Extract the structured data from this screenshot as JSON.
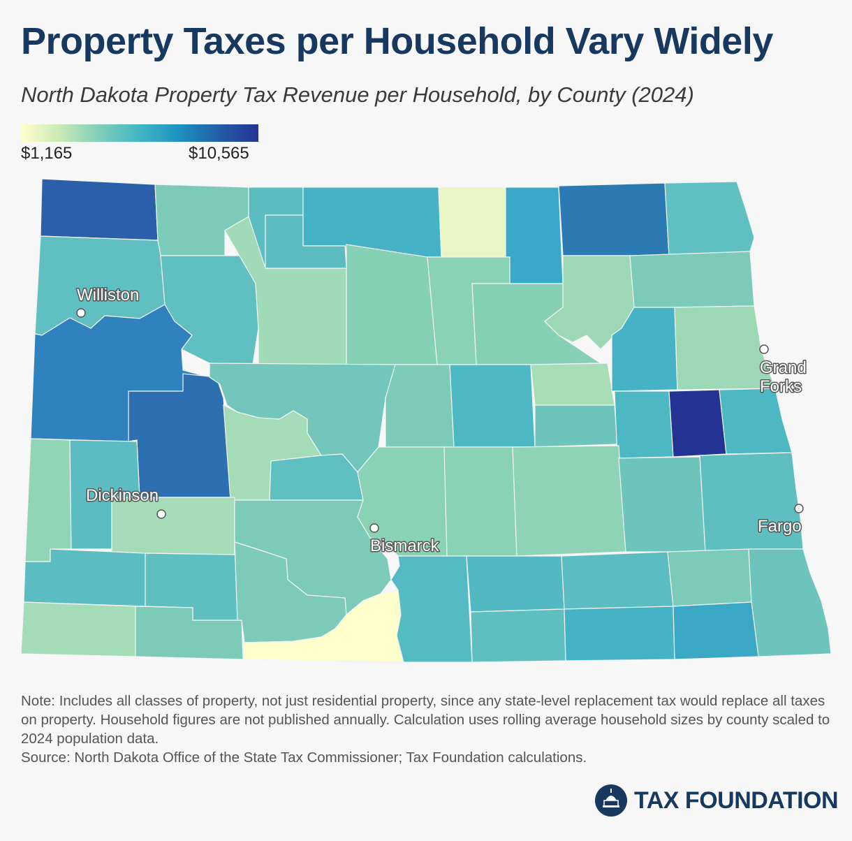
{
  "title": "Property Taxes per Household Vary Widely",
  "subtitle": "North Dakota Property Tax Revenue per Household, by County (2024)",
  "legend": {
    "min": "$1,165",
    "max": "$10,565",
    "colors": [
      "#ffffcc",
      "#c7e9b4",
      "#7fcdbb",
      "#41b6c4",
      "#1d91c0",
      "#225ea8",
      "#253494"
    ]
  },
  "cities": {
    "williston": "Williston",
    "dickinson": "Dickinson",
    "bismarck": "Bismarck",
    "grand_forks_line1": "Grand",
    "grand_forks_line2": "Forks",
    "fargo": "Fargo"
  },
  "notes": {
    "note": "Note: Includes all classes of property, not just residential property, since any state-level replacement tax would replace all taxes on property. Household figures are not published annually. Calculation uses rolling average household sizes by county scaled to 2024 population data.",
    "source": "Source: North Dakota Office of the State Tax Commissioner; Tax Foundation calculations."
  },
  "logo": {
    "text": "TAX FOUNDATION"
  },
  "palette": {
    "very_low": "#ffffcc",
    "low": "#e9f6c3",
    "low_mid": "#9ed9b6",
    "mid": "#7ccbb8",
    "mid_high": "#5fbfc0",
    "high": "#41b6c4",
    "higher": "#2c7fb8",
    "highest": "#253494"
  }
}
